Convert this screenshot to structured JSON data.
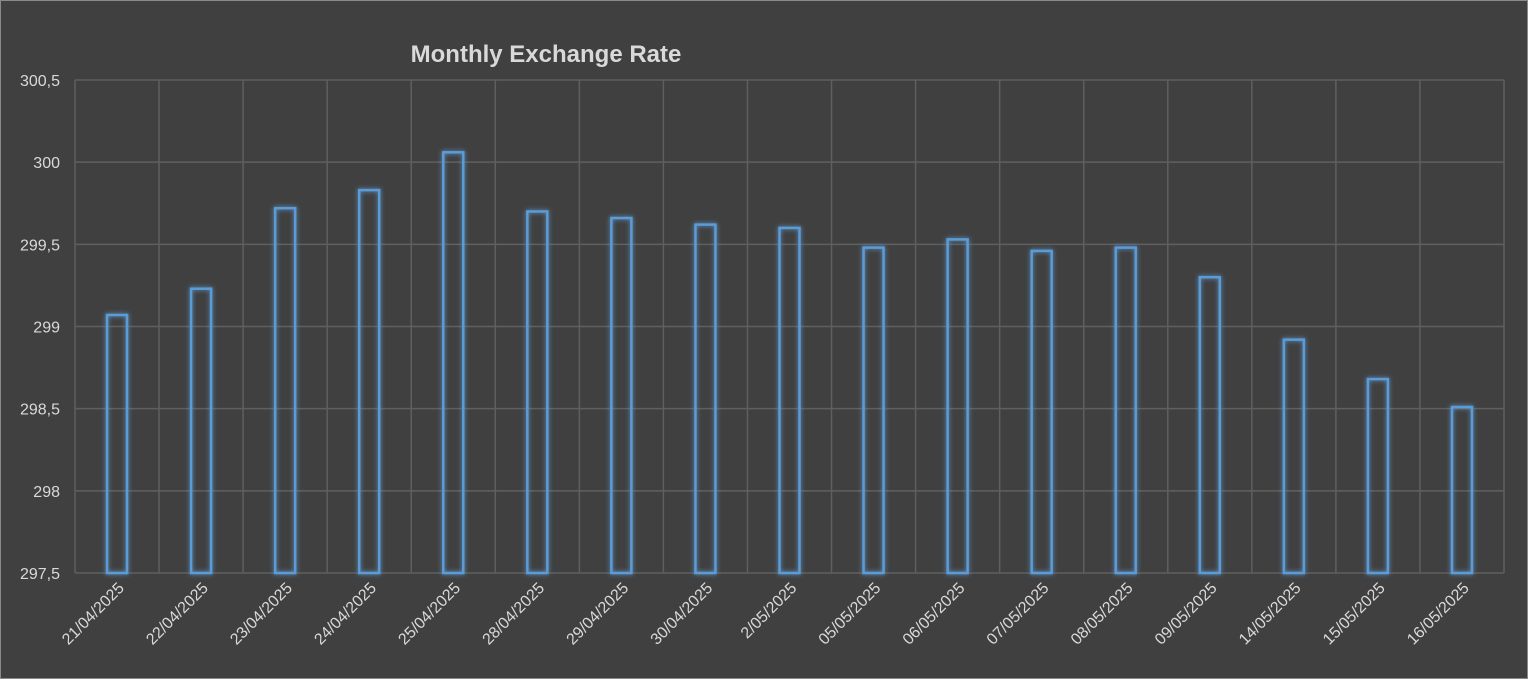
{
  "chart_data": {
    "type": "bar",
    "title": "Monthly Exchange Rate",
    "xlabel": "",
    "ylabel": "",
    "categories": [
      "21/04/2025",
      "22/04/2025",
      "23/04/2025",
      "24/04/2025",
      "25/04/2025",
      "28/04/2025",
      "29/04/2025",
      "30/04/2025",
      "2/05/2025",
      "05/05/2025",
      "06/05/2025",
      "07/05/2025",
      "08/05/2025",
      "09/05/2025",
      "14/05/2025",
      "15/05/2025",
      "16/05/2025"
    ],
    "values": [
      299.07,
      299.23,
      299.72,
      299.83,
      300.06,
      299.7,
      299.66,
      299.62,
      299.6,
      299.48,
      299.53,
      299.46,
      299.48,
      299.3,
      298.92,
      298.68,
      298.51
    ],
    "ylim": [
      297.5,
      300.5
    ],
    "yticks": [
      "297,5",
      "298",
      "298,5",
      "299",
      "299,5",
      "300",
      "300,5"
    ],
    "ytick_values": [
      297.5,
      298,
      298.5,
      299,
      299.5,
      300,
      300.5
    ],
    "grid": true,
    "legend": "none",
    "colors": {
      "background": "#404040",
      "grid": "#5f5f5f",
      "bar_outline": "#5b9bd5",
      "bar_glow": "#2e75b6",
      "text": "#d9d9d9",
      "border": "#8a8a8a"
    }
  }
}
